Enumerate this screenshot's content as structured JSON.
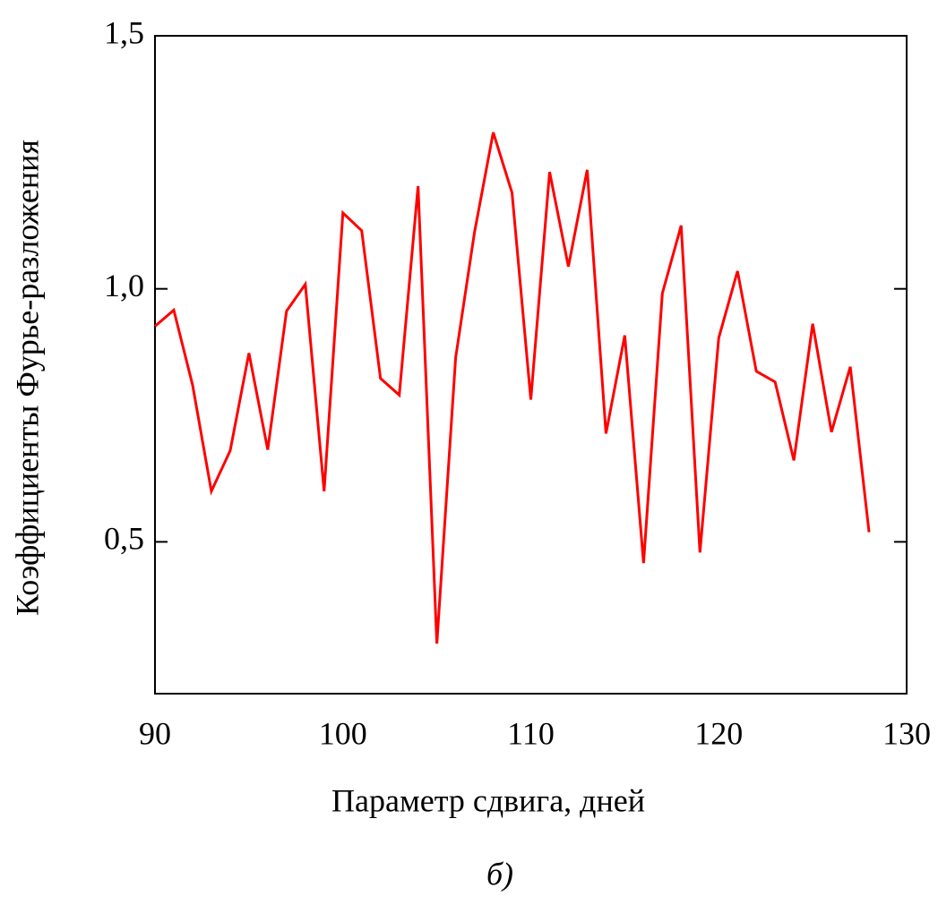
{
  "chart_data": {
    "type": "line",
    "x_label": "Параметр сдвига, дней",
    "y_label": "Коэффициенты Фурье-разложения",
    "caption": "б)",
    "x": [
      90,
      91,
      92,
      93,
      94,
      95,
      96,
      97,
      98,
      99,
      100,
      101,
      102,
      103,
      104,
      105,
      106,
      107,
      108,
      109,
      110,
      111,
      112,
      113,
      114,
      115,
      116,
      117,
      118,
      119,
      120,
      121,
      122,
      123,
      124,
      125,
      126,
      127,
      128
    ],
    "series": [
      {
        "color": "#ff0000",
        "values": [
          0.926,
          0.958,
          0.81,
          0.6,
          0.68,
          0.873,
          0.682,
          0.956,
          1.009,
          0.6,
          1.15,
          1.115,
          0.823,
          0.79,
          1.203,
          0.299,
          0.864,
          1.111,
          1.309,
          1.19,
          0.781,
          1.231,
          1.044,
          1.235,
          0.714,
          0.908,
          0.458,
          0.991,
          1.125,
          0.479,
          0.903,
          1.035,
          0.837,
          0.816,
          0.661,
          0.931,
          0.717,
          0.846,
          0.519
        ]
      }
    ],
    "xlim": [
      90,
      130
    ],
    "ylim": [
      0.2,
      1.5
    ],
    "xticks": [
      90,
      100,
      110,
      120,
      130
    ],
    "yticks": [
      {
        "value": 0.5,
        "label": "0,5"
      },
      {
        "value": 1.0,
        "label": "1,0"
      },
      {
        "value": 1.5,
        "label": "1,5"
      }
    ]
  }
}
